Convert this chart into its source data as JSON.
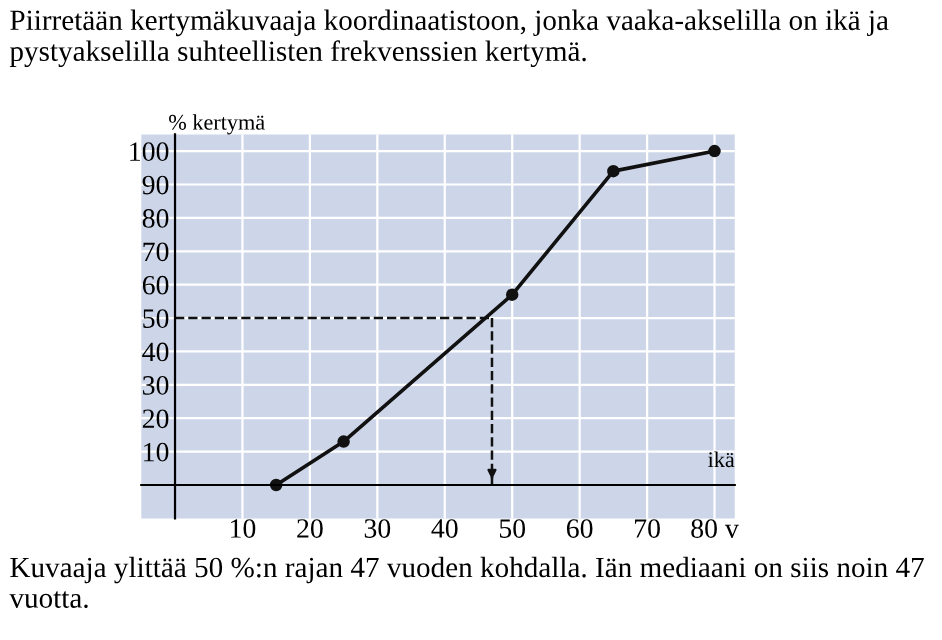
{
  "chart_data": {
    "type": "line",
    "title": "Piirretään kertymäkuvaaja koordinaatistoon, jonka vaaka-akselilla on ikä ja pystyakselilla suhteellisten frekvenssien kertymä.",
    "xlabel": "ikä",
    "ylabel": "% kertymä",
    "x": [
      15,
      25,
      50,
      65,
      80
    ],
    "series": [
      {
        "color": "#111111",
        "values": [
          0,
          13,
          57,
          94,
          100
        ]
      }
    ],
    "marker": "circle",
    "line_style": "solid",
    "xlim": [
      -5,
      83
    ],
    "ylim": [
      -10,
      105
    ],
    "xticks": [
      10,
      20,
      30,
      40,
      50,
      60,
      70,
      {
        "value": 80,
        "label": "80 v"
      }
    ],
    "yticks": [
      10,
      20,
      30,
      40,
      50,
      60,
      70,
      80,
      90,
      100
    ],
    "grid": true,
    "ref_lines": [
      {
        "axis": "y",
        "value": 50,
        "line_style": "dashed",
        "color": "#111111"
      },
      {
        "axis": "x",
        "value": 47,
        "line_style": "dashed",
        "color": "#111111"
      }
    ],
    "annotations": [
      "Kuvaaja ylittää 50 %:n rajan 47 vuoden kohdalla. Iän mediaani on siis noin 47 vuotta."
    ]
  }
}
